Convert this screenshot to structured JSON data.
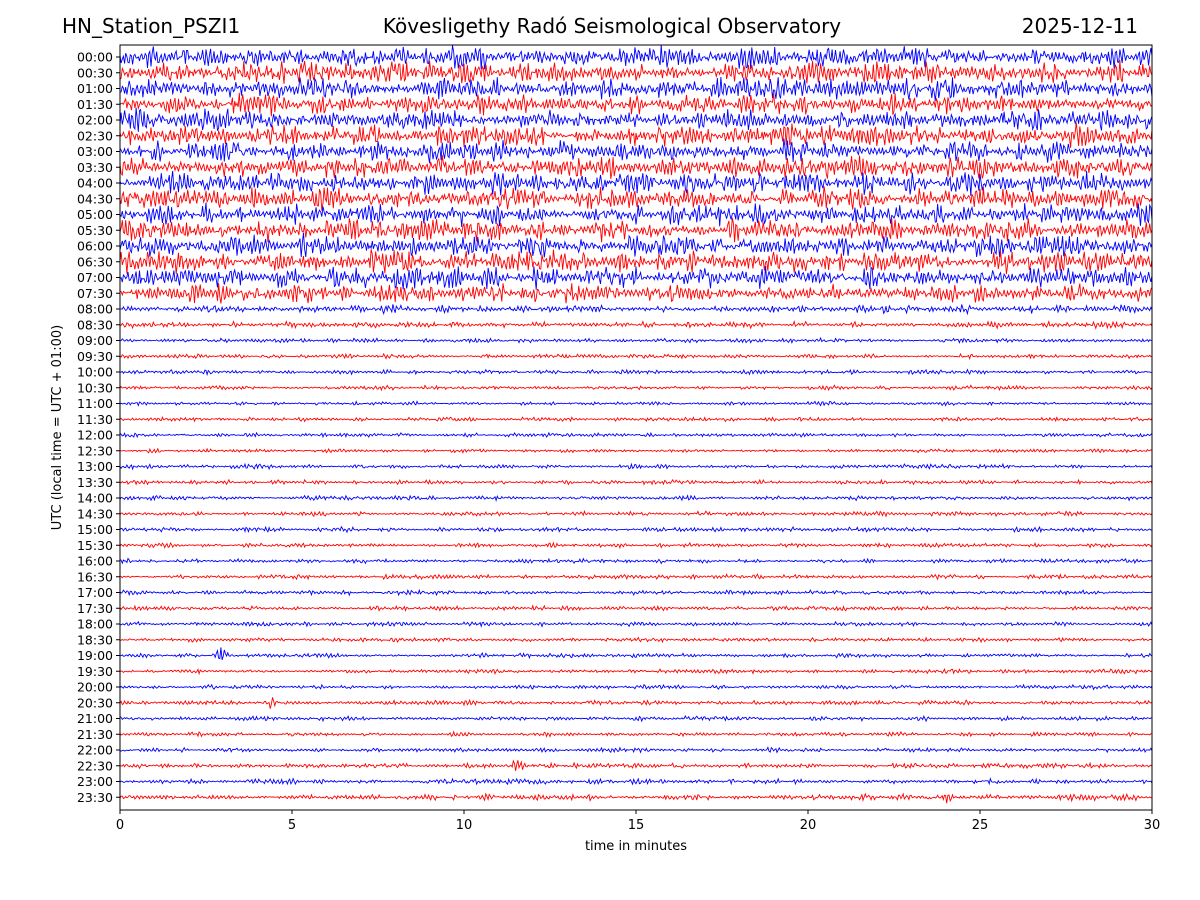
{
  "header": {
    "station": "HN_Station_PSZI1",
    "observatory": "Kövesligethy Radó Seismological Observatory",
    "date": "2025-12-11"
  },
  "chart_data": {
    "type": "line",
    "title": "Kövesligethy Radó Seismological Observatory",
    "xlabel": "time in minutes",
    "ylabel": "UTC (local time = UTC + 01:00)",
    "xlim": [
      0,
      30
    ],
    "x_ticks": [
      0,
      5,
      10,
      15,
      20,
      25,
      30
    ],
    "row_labels": [
      "00:00",
      "00:30",
      "01:00",
      "01:30",
      "02:00",
      "02:30",
      "03:00",
      "03:30",
      "04:00",
      "04:30",
      "05:00",
      "05:30",
      "06:00",
      "06:30",
      "07:00",
      "07:30",
      "08:00",
      "08:30",
      "09:00",
      "09:30",
      "10:00",
      "10:30",
      "11:00",
      "11:30",
      "12:00",
      "12:30",
      "13:00",
      "13:30",
      "14:00",
      "14:30",
      "15:00",
      "15:30",
      "16:00",
      "16:30",
      "17:00",
      "17:30",
      "18:00",
      "18:30",
      "19:00",
      "19:30",
      "20:00",
      "20:30",
      "21:00",
      "21:30",
      "22:00",
      "22:30",
      "23:00",
      "23:30"
    ],
    "trace_colors": [
      "#0000ff",
      "#ff0000"
    ],
    "grid": false,
    "legend": "none",
    "relative_amplitude": [
      8,
      8,
      8,
      8,
      8,
      8,
      8,
      8,
      8,
      8,
      8,
      8,
      8,
      8,
      8,
      7,
      3,
      2.2,
      1.6,
      1.6,
      1.6,
      1.5,
      1.5,
      1.5,
      1.4,
      1.4,
      1.6,
      1.5,
      1.6,
      1.6,
      1.7,
      1.6,
      1.6,
      1.7,
      1.6,
      1.6,
      1.6,
      1.6,
      1.6,
      1.6,
      1.6,
      1.6,
      1.6,
      1.5,
      1.6,
      1.8,
      1.9,
      2.2
    ],
    "events": [
      {
        "row": "19:00",
        "minute": 2.9,
        "label": "local burst"
      },
      {
        "row": "20:30",
        "minute": 4.4,
        "label": "local burst"
      },
      {
        "row": "22:30",
        "minute": 11.6,
        "label": "spike"
      },
      {
        "row": "23:30",
        "minute": 24.0,
        "label": "spike"
      }
    ]
  }
}
